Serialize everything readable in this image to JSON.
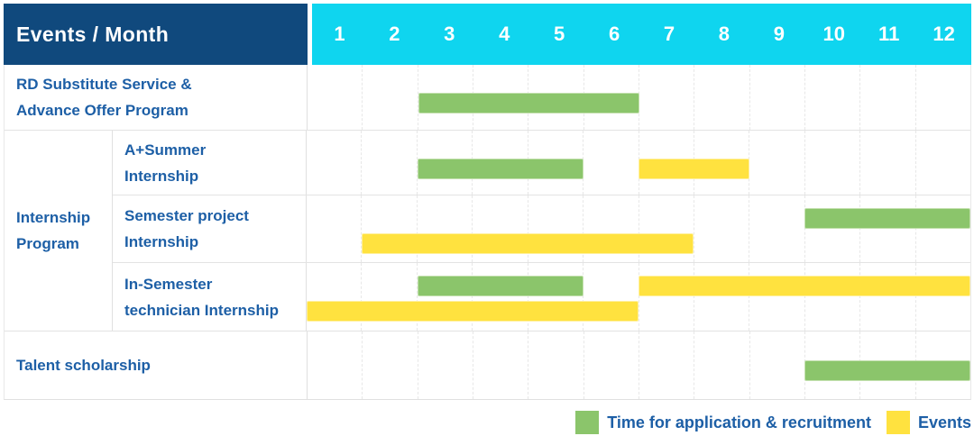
{
  "header": {
    "title": "Events / Month",
    "months": [
      "1",
      "2",
      "3",
      "4",
      "5",
      "6",
      "7",
      "8",
      "9",
      "10",
      "11",
      "12"
    ]
  },
  "colors": {
    "header_bg": "#10497D",
    "month_axis_bg": "#0FD5EF",
    "label_text": "#1D5FA6",
    "application_green": "#8BC56B",
    "event_yellow": "#FFE23F",
    "grid_line": "#E7E7E7",
    "row_border": "#E3E3E3"
  },
  "legend": {
    "items": [
      {
        "kind": "application",
        "label": "Time for application & recruitment"
      },
      {
        "kind": "event",
        "label": "Events"
      }
    ]
  },
  "chart_data": {
    "type": "bar",
    "subtype": "gantt-schedule",
    "title": "Events / Month",
    "x_axis_label": "Month",
    "x_ticks": [
      1,
      2,
      3,
      4,
      5,
      6,
      7,
      8,
      9,
      10,
      11,
      12
    ],
    "x_range": [
      1,
      12
    ],
    "grid": "vertical-dashed",
    "legend_position": "bottom-right",
    "legend_entries": [
      {
        "kind": "application",
        "color": "#8BC56B",
        "label": "Time for application & recruitment"
      },
      {
        "kind": "event",
        "color": "#FFE23F",
        "label": "Events"
      }
    ],
    "group_label": "Internship Program",
    "group_label_lines": [
      "Internship",
      "Program"
    ],
    "rows": [
      {
        "label": "RD Substitute Service & Advance Offer Program",
        "label_lines": [
          "RD Substitute Service &",
          "Advance Offer Program"
        ],
        "group": null,
        "bars": [
          {
            "kind": "application",
            "start_month": 3,
            "end_month": 6,
            "lane": "single"
          }
        ]
      },
      {
        "label": "A+Summer Internship",
        "label_lines": [
          "A+Summer",
          "Internship"
        ],
        "group": "Internship Program",
        "bars": [
          {
            "kind": "application",
            "start_month": 3,
            "end_month": 5,
            "lane": "single"
          },
          {
            "kind": "event",
            "start_month": 7,
            "end_month": 8,
            "lane": "single"
          }
        ]
      },
      {
        "label": "Semester project Internship",
        "label_lines": [
          "Semester project",
          "Internship"
        ],
        "group": "Internship Program",
        "bars": [
          {
            "kind": "application",
            "start_month": 10,
            "end_month": 12,
            "lane": "top"
          },
          {
            "kind": "event",
            "start_month": 2,
            "end_month": 7,
            "lane": "bottom"
          }
        ]
      },
      {
        "label": "In-Semester technician Internship",
        "label_lines": [
          "In-Semester",
          "technician Internship"
        ],
        "group": "Internship Program",
        "bars": [
          {
            "kind": "application",
            "start_month": 3,
            "end_month": 5,
            "lane": "top"
          },
          {
            "kind": "event",
            "start_month": 7,
            "end_month": 12,
            "lane": "top"
          },
          {
            "kind": "event",
            "start_month": 1,
            "end_month": 6,
            "lane": "bottom"
          }
        ]
      },
      {
        "label": "Talent scholarship",
        "label_lines": [
          "Talent scholarship"
        ],
        "group": null,
        "bars": [
          {
            "kind": "application",
            "start_month": 10,
            "end_month": 12,
            "lane": "single"
          }
        ]
      }
    ]
  }
}
